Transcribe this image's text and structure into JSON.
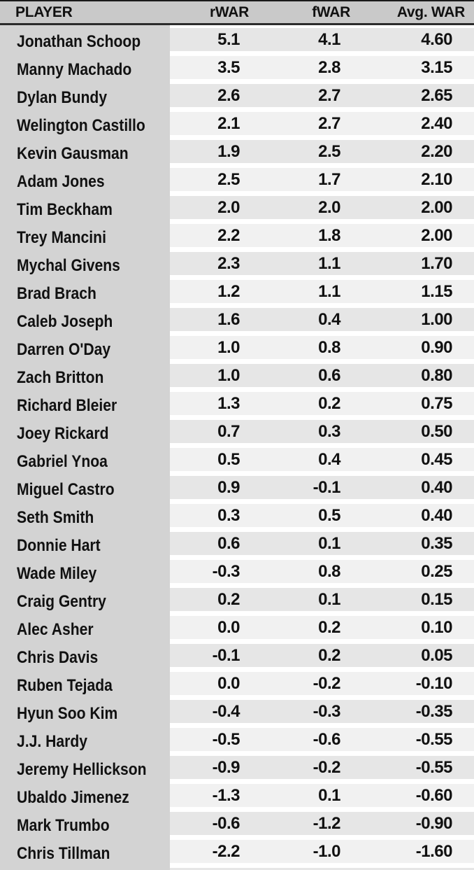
{
  "chart_data": {
    "type": "table",
    "columns": [
      "PLAYER",
      "rWAR",
      "fWAR",
      "Avg. WAR"
    ],
    "rows": [
      {
        "player": "Jonathan Schoop",
        "rwar": "5.1",
        "fwar": "4.1",
        "avg": "4.60"
      },
      {
        "player": "Manny Machado",
        "rwar": "3.5",
        "fwar": "2.8",
        "avg": "3.15"
      },
      {
        "player": "Dylan Bundy",
        "rwar": "2.6",
        "fwar": "2.7",
        "avg": "2.65"
      },
      {
        "player": "Welington Castillo",
        "rwar": "2.1",
        "fwar": "2.7",
        "avg": "2.40"
      },
      {
        "player": "Kevin Gausman",
        "rwar": "1.9",
        "fwar": "2.5",
        "avg": "2.20"
      },
      {
        "player": "Adam Jones",
        "rwar": "2.5",
        "fwar": "1.7",
        "avg": "2.10"
      },
      {
        "player": "Tim Beckham",
        "rwar": "2.0",
        "fwar": "2.0",
        "avg": "2.00"
      },
      {
        "player": "Trey Mancini",
        "rwar": "2.2",
        "fwar": "1.8",
        "avg": "2.00"
      },
      {
        "player": "Mychal Givens",
        "rwar": "2.3",
        "fwar": "1.1",
        "avg": "1.70"
      },
      {
        "player": "Brad Brach",
        "rwar": "1.2",
        "fwar": "1.1",
        "avg": "1.15"
      },
      {
        "player": "Caleb Joseph",
        "rwar": "1.6",
        "fwar": "0.4",
        "avg": "1.00"
      },
      {
        "player": "Darren O'Day",
        "rwar": "1.0",
        "fwar": "0.8",
        "avg": "0.90"
      },
      {
        "player": "Zach Britton",
        "rwar": "1.0",
        "fwar": "0.6",
        "avg": "0.80"
      },
      {
        "player": "Richard Bleier",
        "rwar": "1.3",
        "fwar": "0.2",
        "avg": "0.75"
      },
      {
        "player": "Joey Rickard",
        "rwar": "0.7",
        "fwar": "0.3",
        "avg": "0.50"
      },
      {
        "player": "Gabriel Ynoa",
        "rwar": "0.5",
        "fwar": "0.4",
        "avg": "0.45"
      },
      {
        "player": "Miguel Castro",
        "rwar": "0.9",
        "fwar": "-0.1",
        "avg": "0.40"
      },
      {
        "player": "Seth Smith",
        "rwar": "0.3",
        "fwar": "0.5",
        "avg": "0.40"
      },
      {
        "player": "Donnie Hart",
        "rwar": "0.6",
        "fwar": "0.1",
        "avg": "0.35"
      },
      {
        "player": "Wade Miley",
        "rwar": "-0.3",
        "fwar": "0.8",
        "avg": "0.25"
      },
      {
        "player": "Craig Gentry",
        "rwar": "0.2",
        "fwar": "0.1",
        "avg": "0.15"
      },
      {
        "player": "Alec Asher",
        "rwar": "0.0",
        "fwar": "0.2",
        "avg": "0.10"
      },
      {
        "player": "Chris Davis",
        "rwar": "-0.1",
        "fwar": "0.2",
        "avg": "0.05"
      },
      {
        "player": "Ruben Tejada",
        "rwar": "0.0",
        "fwar": "-0.2",
        "avg": "-0.10"
      },
      {
        "player": "Hyun Soo Kim",
        "rwar": "-0.4",
        "fwar": "-0.3",
        "avg": "-0.35"
      },
      {
        "player": "J.J. Hardy",
        "rwar": "-0.5",
        "fwar": "-0.6",
        "avg": "-0.55"
      },
      {
        "player": "Jeremy Hellickson",
        "rwar": "-0.9",
        "fwar": "-0.2",
        "avg": "-0.55"
      },
      {
        "player": "Ubaldo Jimenez",
        "rwar": "-1.3",
        "fwar": "0.1",
        "avg": "-0.60"
      },
      {
        "player": "Mark Trumbo",
        "rwar": "-0.6",
        "fwar": "-1.2",
        "avg": "-0.90"
      },
      {
        "player": "Chris Tillman",
        "rwar": "-2.2",
        "fwar": "-1.0",
        "avg": "-1.60"
      }
    ],
    "title": "",
    "layout": "striped-table, numeric columns right-aligned"
  },
  "colors": {
    "header_bg": "#c9c9c9",
    "player_col_bg": "#d3d3d3",
    "row_odd_bg": "#e6e6e6",
    "row_even_bg": "#f1f1f1",
    "rule_top": "#1a1a1a",
    "rule_header": "#2b2b2b",
    "text": "#111111",
    "gap": "#ffffff"
  }
}
